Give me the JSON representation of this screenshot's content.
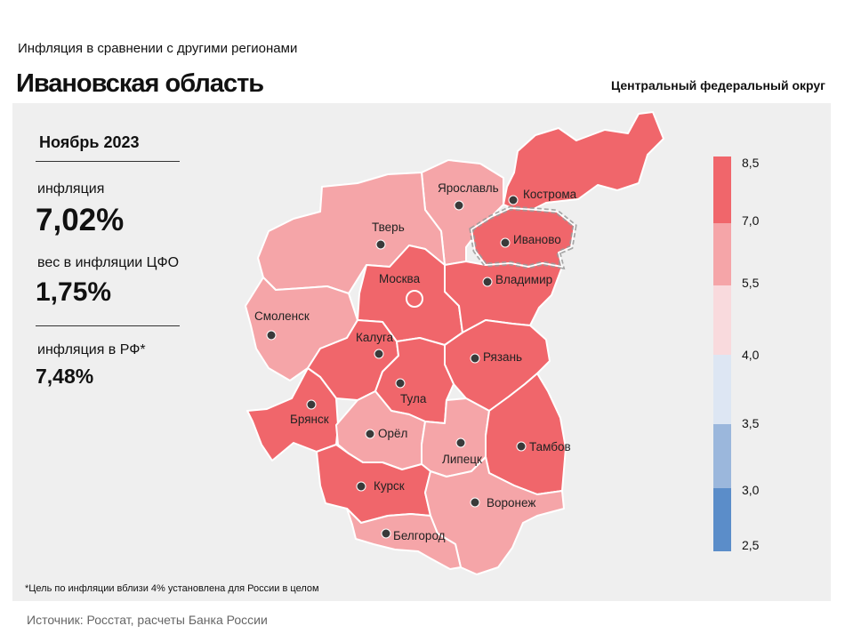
{
  "header": {
    "subtitle": "Инфляция  в сравнении  с другими  регионами",
    "title": "Ивановская область",
    "district": "Центральный федеральный округ"
  },
  "stats": {
    "period": "Ноябрь 2023",
    "inflation_label": "инфляция",
    "inflation_value": "7,02%",
    "weight_label": "вес в инфляции  ЦФО",
    "weight_value": "1,75%",
    "rf_label": "инфляция  в РФ*",
    "rf_value": "7,48%"
  },
  "colors": {
    "c_7_85": "#f0666b",
    "c_55_7": "#f5a5a8",
    "c_4_55": "#f9dadd",
    "c_35_4": "#dde6f3",
    "c_3_35": "#9bb7dc",
    "c_25_3": "#5b8dc9",
    "highlight": "#f0666b"
  },
  "legend": {
    "ticks": [
      "8,5",
      "7,0",
      "5,5",
      "4,0",
      "3,5",
      "3,0",
      "2,5"
    ]
  },
  "regions": [
    {
      "name": "Кострома",
      "bucket": "7.0–8.5"
    },
    {
      "name": "Ярославль",
      "bucket": "5.5–7.0"
    },
    {
      "name": "Иваново",
      "bucket": "7.0–8.5",
      "selected": true
    },
    {
      "name": "Тверь",
      "bucket": "5.5–7.0"
    },
    {
      "name": "Москва",
      "bucket": "7.0–8.5"
    },
    {
      "name": "Владимир",
      "bucket": "7.0–8.5"
    },
    {
      "name": "Смоленск",
      "bucket": "5.5–7.0"
    },
    {
      "name": "Калуга",
      "bucket": "7.0–8.5"
    },
    {
      "name": "Рязань",
      "bucket": "7.0–8.5"
    },
    {
      "name": "Тула",
      "bucket": "7.0–8.5"
    },
    {
      "name": "Брянск",
      "bucket": "7.0–8.5"
    },
    {
      "name": "Орёл",
      "bucket": "5.5–7.0"
    },
    {
      "name": "Липецк",
      "bucket": "5.5–7.0"
    },
    {
      "name": "Тамбов",
      "bucket": "7.0–8.5"
    },
    {
      "name": "Курск",
      "bucket": "7.0–8.5"
    },
    {
      "name": "Воронеж",
      "bucket": "5.5–7.0"
    },
    {
      "name": "Белгород",
      "bucket": "5.5–7.0"
    }
  ],
  "footnote": "*Цель по инфляции вблизи 4% установлена для России в целом",
  "source": "Источник: Росстат, расчеты Банка России"
}
